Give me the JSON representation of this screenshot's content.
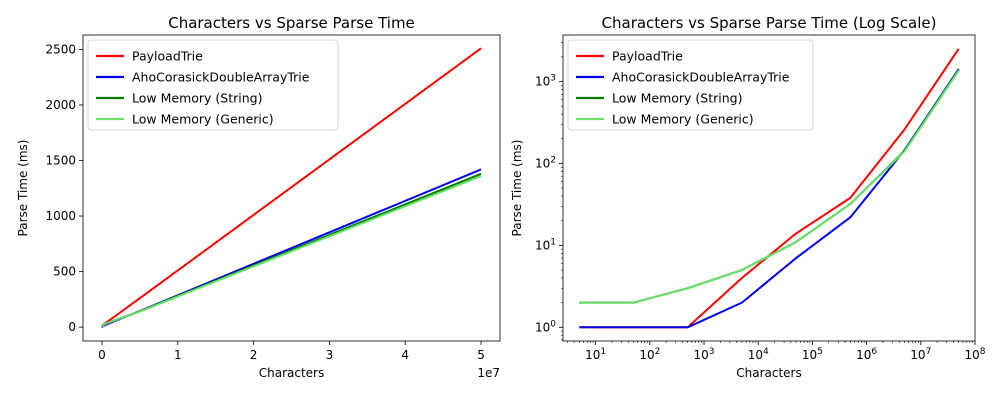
{
  "chart_data": [
    {
      "type": "line",
      "title": "Characters vs Sparse Parse Time",
      "xlabel": "Characters",
      "ylabel": "Parse Time (ms)",
      "x_offset_label": "1e7",
      "xscale": "linear",
      "yscale": "linear",
      "xlim": [
        -2500000,
        52500000
      ],
      "ylim": [
        -125,
        2630
      ],
      "xticks": [
        {
          "value": 0,
          "label": "0"
        },
        {
          "value": 10000000,
          "label": "1"
        },
        {
          "value": 20000000,
          "label": "2"
        },
        {
          "value": 30000000,
          "label": "3"
        },
        {
          "value": 40000000,
          "label": "4"
        },
        {
          "value": 50000000,
          "label": "5"
        }
      ],
      "yticks": [
        {
          "value": 0,
          "label": "0"
        },
        {
          "value": 500,
          "label": "500"
        },
        {
          "value": 1000,
          "label": "1000"
        },
        {
          "value": 1500,
          "label": "1500"
        },
        {
          "value": 2000,
          "label": "2000"
        },
        {
          "value": 2500,
          "label": "2500"
        }
      ],
      "grid": false,
      "legend_position": "top-left",
      "x": [
        5,
        50,
        500,
        5000,
        50000,
        500000,
        5000000,
        50000000
      ],
      "series": [
        {
          "name": "PayloadTrie",
          "color": "#ff0000",
          "values": [
            1,
            1,
            1,
            4,
            14,
            38,
            260,
            2510
          ]
        },
        {
          "name": "AhoCorasickDoubleArrayTrie",
          "color": "#0000ee",
          "values": [
            1,
            1,
            1,
            2,
            7,
            22,
            145,
            1420
          ]
        },
        {
          "name": "Low Memory (String)",
          "color": "#007a00",
          "values": [
            2,
            2,
            3,
            5,
            11,
            32,
            142,
            1380
          ]
        },
        {
          "name": "Low Memory (Generic)",
          "color": "#66e066",
          "values": [
            2,
            2,
            3,
            5,
            11,
            32,
            140,
            1360
          ]
        }
      ]
    },
    {
      "type": "line",
      "title": "Characters vs Sparse Parse Time (Log Scale)",
      "xlabel": "Characters",
      "ylabel": "Parse Time (ms)",
      "xscale": "log",
      "yscale": "log",
      "xlim": [
        2.5,
        100000000
      ],
      "ylim": [
        0.68,
        3700
      ],
      "xticks": [
        {
          "value": 10,
          "base": "10",
          "exp": "1"
        },
        {
          "value": 100,
          "base": "10",
          "exp": "2"
        },
        {
          "value": 1000,
          "base": "10",
          "exp": "3"
        },
        {
          "value": 10000,
          "base": "10",
          "exp": "4"
        },
        {
          "value": 100000,
          "base": "10",
          "exp": "5"
        },
        {
          "value": 1000000,
          "base": "10",
          "exp": "6"
        },
        {
          "value": 10000000,
          "base": "10",
          "exp": "7"
        },
        {
          "value": 100000000,
          "base": "10",
          "exp": "8"
        }
      ],
      "yticks": [
        {
          "value": 1,
          "base": "10",
          "exp": "0"
        },
        {
          "value": 10,
          "base": "10",
          "exp": "1"
        },
        {
          "value": 100,
          "base": "10",
          "exp": "2"
        },
        {
          "value": 1000,
          "base": "10",
          "exp": "3"
        }
      ],
      "grid": false,
      "legend_position": "top-left",
      "x": [
        5,
        50,
        500,
        5000,
        50000,
        500000,
        5000000,
        50000000
      ],
      "series": [
        {
          "name": "PayloadTrie",
          "color": "#ff0000",
          "values": [
            1,
            1,
            1,
            4,
            14,
            38,
            260,
            2510
          ]
        },
        {
          "name": "AhoCorasickDoubleArrayTrie",
          "color": "#0000ee",
          "values": [
            1,
            1,
            1,
            2,
            7,
            22,
            145,
            1420
          ]
        },
        {
          "name": "Low Memory (String)",
          "color": "#007a00",
          "values": [
            2,
            2,
            3,
            5,
            11,
            32,
            142,
            1380
          ]
        },
        {
          "name": "Low Memory (Generic)",
          "color": "#66e066",
          "values": [
            2,
            2,
            3,
            5,
            11,
            32,
            140,
            1360
          ]
        }
      ]
    }
  ]
}
